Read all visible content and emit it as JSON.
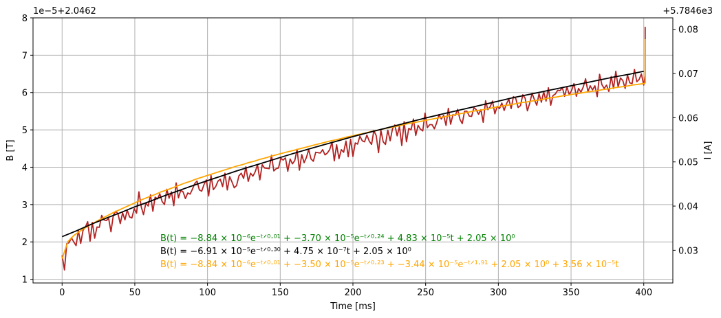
{
  "chart_data": {
    "type": "line",
    "xlabel": "Time [ms]",
    "ylabel_left": "B [T]",
    "ylabel_right": "I [A]",
    "offset_left": "1e−5+2.0462",
    "offset_right": "+5.7846e3",
    "xlim": [
      -20,
      420
    ],
    "ylim_left": [
      0.9,
      8.0
    ],
    "ylim_right": [
      0.0226,
      0.0826
    ],
    "xticks": [
      0,
      50,
      100,
      150,
      200,
      250,
      300,
      350,
      400
    ],
    "yticks_left": [
      1,
      2,
      3,
      4,
      5,
      6,
      7,
      8
    ],
    "yticks_right": [
      0.03,
      0.04,
      0.05,
      0.06,
      0.07,
      0.08
    ],
    "ytick_labels_right": [
      "0.03",
      "0.04",
      "0.05",
      "0.06",
      "0.07",
      "0.08"
    ],
    "grid": true,
    "x_range": [
      0,
      401
    ],
    "series": [
      {
        "role": "measured",
        "color": "#b22222",
        "x_step": 1.6,
        "y": [
          1.64,
          1.25,
          1.95,
          1.98,
          2.11,
          2.0,
          1.9,
          2.31,
          1.96,
          2.31,
          2.4,
          2.54,
          2.02,
          2.52,
          2.1,
          2.4,
          2.39,
          2.71,
          2.59,
          2.57,
          2.63,
          2.27,
          2.71,
          2.82,
          2.76,
          2.49,
          2.78,
          2.59,
          2.85,
          2.67,
          2.64,
          2.89,
          2.77,
          3.34,
          2.94,
          2.73,
          3.04,
          2.96,
          3.26,
          2.82,
          3.2,
          3.15,
          3.29,
          3.08,
          3.0,
          3.41,
          3.17,
          3.34,
          2.97,
          3.58,
          3.18,
          3.38,
          3.34,
          3.16,
          3.31,
          3.28,
          3.41,
          3.56,
          3.63,
          3.39,
          3.36,
          3.54,
          3.66,
          3.23,
          3.78,
          3.4,
          3.48,
          3.63,
          3.68,
          3.48,
          3.84,
          3.39,
          3.75,
          3.61,
          3.45,
          3.51,
          3.77,
          3.84,
          3.7,
          4.01,
          3.62,
          3.84,
          3.76,
          3.88,
          4.07,
          3.66,
          4.07,
          3.98,
          3.97,
          3.96,
          4.32,
          3.9,
          3.96,
          3.98,
          4.24,
          4.19,
          4.25,
          3.89,
          4.22,
          4.09,
          4.18,
          4.48,
          3.92,
          4.34,
          4.12,
          4.26,
          4.47,
          4.22,
          4.16,
          4.4,
          4.39,
          4.38,
          4.47,
          4.33,
          4.38,
          4.47,
          4.67,
          4.17,
          4.6,
          4.23,
          4.47,
          4.4,
          4.7,
          4.28,
          4.75,
          4.29,
          4.65,
          4.62,
          4.83,
          4.71,
          4.68,
          4.86,
          4.7,
          4.61,
          4.98,
          4.85,
          4.39,
          4.99,
          4.68,
          4.61,
          4.99,
          4.71,
          5.03,
          5.13,
          4.84,
          5.09,
          4.58,
          5.22,
          4.68,
          5.04,
          5.0,
          5.29,
          4.85,
          5.12,
          5.02,
          4.97,
          5.45,
          5.06,
          5.14,
          5.14,
          5.03,
          5.19,
          5.41,
          5.29,
          5.39,
          5.12,
          5.58,
          5.15,
          5.41,
          5.39,
          5.55,
          5.28,
          5.17,
          5.5,
          5.5,
          5.37,
          5.36,
          5.6,
          5.54,
          5.42,
          5.54,
          5.2,
          5.78,
          5.54,
          5.62,
          5.77,
          5.43,
          5.63,
          5.57,
          5.72,
          5.52,
          5.7,
          5.82,
          5.57,
          5.89,
          5.84,
          5.6,
          5.65,
          5.94,
          5.85,
          5.51,
          5.72,
          5.98,
          5.81,
          5.66,
          5.97,
          5.74,
          6.02,
          5.77,
          6.13,
          5.66,
          5.92,
          5.96,
          6.06,
          6.05,
          6.13,
          5.9,
          6.15,
          5.94,
          6.06,
          6.24,
          5.9,
          6.11,
          6.01,
          6.15,
          6.37,
          6.02,
          6.18,
          6.07,
          6.18,
          5.89,
          6.49,
          6.21,
          6.11,
          6.2,
          6.03,
          6.43,
          6.11,
          6.57,
          6.15,
          6.39,
          6.32,
          6.11,
          6.47,
          6.26,
          6.24,
          6.62,
          6.29,
          6.35,
          6.5,
          6.2,
          6.46,
          6.48,
          6.49,
          6.37,
          6.26,
          6.58,
          6.51,
          6.63,
          6.71,
          6.43,
          6.58,
          6.75,
          6.52,
          6.35,
          6.7,
          6.6,
          6.63,
          6.81,
          6.53,
          6.4,
          6.88,
          6.61,
          6.78,
          6.58,
          6.92,
          6.64,
          6.82,
          6.63,
          6.77,
          6.82,
          6.56,
          6.96,
          6.77,
          6.88,
          6.87,
          6.74,
          6.93,
          6.8,
          6.61,
          7.03,
          6.96,
          6.92,
          6.8,
          6.98,
          7.04,
          6.97,
          7.13,
          6.74,
          7.36,
          6.87,
          7.09,
          7.0,
          7.4,
          6.85,
          7.1,
          7.29,
          6.99,
          7.2,
          7.2,
          7.08,
          7.18,
          7.34,
          7.11,
          7.13,
          7.48,
          7.42,
          7.34,
          7.14,
          7.69,
          7.26,
          7.13,
          7.5,
          7.2,
          7.44,
          7.57,
          7.26,
          7.37,
          7.75,
          7.18,
          7.33,
          7.41,
          7.38,
          7.28,
          7.69,
          7.36,
          7.54,
          6.94
        ]
      },
      {
        "role": "fit",
        "color": "#ffa500",
        "x_step": 4,
        "y": [
          1.55,
          2.01,
          2.17,
          2.28,
          2.38,
          2.47,
          2.56,
          2.64,
          2.72,
          2.8,
          2.87,
          2.94,
          3.01,
          3.08,
          3.15,
          3.21,
          3.27,
          3.34,
          3.39,
          3.45,
          3.51,
          3.57,
          3.62,
          3.68,
          3.73,
          3.78,
          3.83,
          3.88,
          3.93,
          3.98,
          4.03,
          4.07,
          4.12,
          4.16,
          4.21,
          4.25,
          4.3,
          4.34,
          4.38,
          4.42,
          4.46,
          4.5,
          4.54,
          4.58,
          4.62,
          4.66,
          4.7,
          4.73,
          4.77,
          4.81,
          4.84,
          4.88,
          4.91,
          4.95,
          4.98,
          5.02,
          5.05,
          5.08,
          5.11,
          5.15,
          5.18,
          5.21,
          5.24,
          5.27,
          5.3,
          5.33,
          5.36,
          5.39,
          5.42,
          5.45,
          5.48,
          5.51,
          5.53,
          5.56,
          5.59,
          5.62,
          5.65,
          5.67,
          5.7,
          5.73,
          5.75,
          5.78,
          5.8,
          5.83,
          5.86,
          5.88,
          5.91,
          5.93,
          5.96,
          5.98,
          6.01,
          6.03,
          6.05,
          6.08,
          6.1,
          6.13,
          6.15,
          6.17,
          6.2,
          6.22,
          6.24,
          6.26,
          6.29,
          6.31,
          6.33,
          6.35,
          6.38,
          6.4,
          6.42,
          6.44,
          6.46,
          6.48,
          6.51,
          6.53,
          6.55,
          6.57,
          6.59,
          6.61,
          6.63,
          6.65,
          6.67,
          6.69,
          6.71,
          6.73,
          6.75,
          6.77,
          6.79,
          6.81,
          6.83,
          6.85,
          6.87,
          6.89,
          6.91,
          6.93,
          6.95,
          6.97,
          6.99,
          7.01,
          7.03,
          7.05,
          7.06,
          7.08,
          7.1,
          7.12,
          7.14,
          7.16,
          7.18,
          7.19,
          7.21,
          7.23,
          7.25,
          7.27,
          7.28,
          7.3,
          7.32,
          7.34,
          7.36,
          7.37,
          7.39,
          7.41,
          7.43
        ]
      },
      {
        "role": "fit",
        "color": "#000000",
        "x_step": 10,
        "y": [
          2.14,
          2.3,
          2.47,
          2.63,
          2.78,
          2.94,
          3.08,
          3.23,
          3.37,
          3.51,
          3.64,
          3.77,
          3.9,
          4.02,
          4.14,
          4.26,
          4.38,
          4.49,
          4.6,
          4.71,
          4.82,
          4.92,
          5.02,
          5.12,
          5.22,
          5.32,
          5.41,
          5.5,
          5.59,
          5.68,
          5.77,
          5.86,
          5.94,
          6.02,
          6.1,
          6.18,
          6.26,
          6.34,
          6.42,
          6.49,
          6.57
        ]
      }
    ],
    "equations": [
      {
        "color": "#008000",
        "text": "B(t) = −8.84 × 10⁻⁶e⁻ᵗᐟ⁰·⁰¹ + −3.70 × 10⁻⁵e⁻ᵗᐟ⁰·²⁴ + 4.83 × 10⁻⁵t + 2.05 × 10⁰"
      },
      {
        "color": "#000000",
        "text": "B(t) = −6.91 × 10⁻⁵e⁻ᵗᐟ⁰·³⁰ + 4.75 × 10⁻⁷t + 2.05 × 10⁰"
      },
      {
        "color": "#ffa500",
        "text": "B(t) = −8.84 × 10⁻⁶e⁻ᵗᐟ⁰·⁰¹ + −3.50 × 10⁻⁵e⁻ᵗᐟ⁰·²³ + −3.44 × 10⁻⁵e⁻ᵗᐟ¹·⁹¹ + 2.05 × 10⁰ + 3.56 × 10⁻⁵t"
      }
    ]
  }
}
